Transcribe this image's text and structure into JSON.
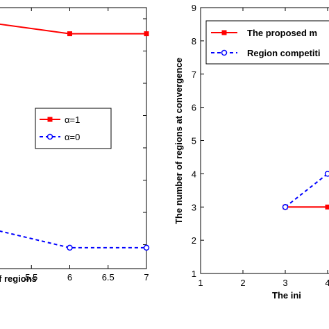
{
  "chart_data": [
    {
      "type": "line",
      "xlabel": "f regions",
      "ylabel": "",
      "xlim": [
        5,
        7
      ],
      "x_ticks": [
        "5.5",
        "6",
        "6.5",
        "7"
      ],
      "y_tick_marks": 8,
      "grid": false,
      "legend_placement": "center-right",
      "series": [
        {
          "name": "α=1",
          "color": "#ff0000",
          "marker": "square",
          "dash": "solid",
          "x": [
            5,
            6,
            7
          ],
          "y": [
            0.94,
            0.9,
            0.9
          ]
        },
        {
          "name": "α=0",
          "color": "#0000ff",
          "marker": "circle",
          "dash": "dashed",
          "x": [
            5,
            6,
            7
          ],
          "y": [
            0.15,
            0.08,
            0.08
          ]
        }
      ]
    },
    {
      "type": "line",
      "ylabel": "The number of regions at convergence",
      "xlabel": "The ini",
      "xlim": [
        1,
        4.3
      ],
      "ylim": [
        1,
        9
      ],
      "x_ticks": [
        "1",
        "2",
        "3",
        "4"
      ],
      "y_ticks": [
        "1",
        "2",
        "3",
        "4",
        "5",
        "6",
        "7",
        "8",
        "9"
      ],
      "grid": false,
      "legend_placement": "top-right",
      "series": [
        {
          "name": "The proposed m",
          "color": "#ff0000",
          "marker": "square",
          "dash": "solid",
          "x": [
            3,
            4
          ],
          "y": [
            3,
            3
          ]
        },
        {
          "name": "Region competiti",
          "color": "#0000ff",
          "marker": "circle",
          "dash": "dashed",
          "x": [
            3,
            4
          ],
          "y": [
            3,
            4
          ]
        }
      ]
    }
  ]
}
